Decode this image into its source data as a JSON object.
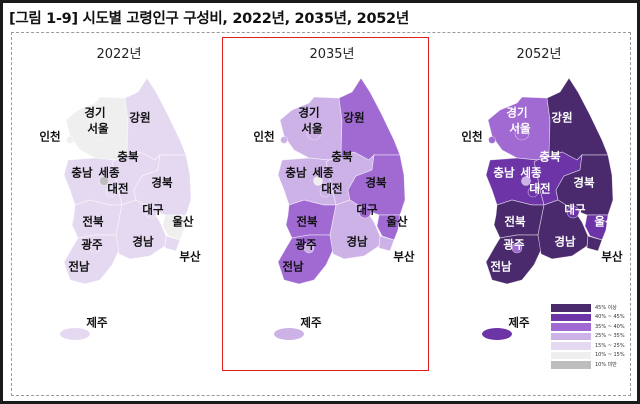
{
  "title": "[그림 1-9] 시도별 고령인구 구성비, 2022년, 2035년, 2052년",
  "legend": [
    {
      "label": "45% 이상",
      "color": "#4a2a6c"
    },
    {
      "label": "40% ~ 45%",
      "color": "#6c34a6"
    },
    {
      "label": "35% ~ 40%",
      "color": "#a06ad2"
    },
    {
      "label": "25% ~ 35%",
      "color": "#cdb2e8"
    },
    {
      "label": "15% ~ 25%",
      "color": "#e4d9f1"
    },
    {
      "label": "10% ~ 15%",
      "color": "#efefef"
    },
    {
      "label": "10% 미만",
      "color": "#bdbdbd"
    }
  ],
  "highlight_color": "#e0201c",
  "maps": [
    {
      "year": "2022년",
      "highlighted": false,
      "levels": {
        "경기": 5,
        "서울": 5,
        "인천": 5,
        "강원": 4,
        "충북": 4,
        "충남": 4,
        "세종": 6,
        "대전": 4,
        "경북": 4,
        "대구": 4,
        "울산": 5,
        "전북": 4,
        "광주": 4,
        "전남": 4,
        "경남": 4,
        "부산": 4,
        "제주": 4
      },
      "label_colors": {}
    },
    {
      "year": "2035년",
      "highlighted": true,
      "levels": {
        "경기": 3,
        "서울": 3,
        "인천": 3,
        "강원": 2,
        "충북": 3,
        "충남": 3,
        "세종": 5,
        "대전": 3,
        "경북": 2,
        "대구": 2,
        "울산": 2,
        "전북": 2,
        "광주": 3,
        "전남": 2,
        "경남": 3,
        "부산": 3,
        "제주": 3
      },
      "label_colors": {}
    },
    {
      "year": "2052년",
      "highlighted": false,
      "levels": {
        "경기": 2,
        "서울": 2,
        "인천": 2,
        "강원": 0,
        "충북": 1,
        "충남": 1,
        "세종": 3,
        "대전": 1,
        "경북": 0,
        "대구": 1,
        "울산": 1,
        "전북": 0,
        "광주": 2,
        "전남": 0,
        "경남": 0,
        "부산": 0,
        "제주": 1
      },
      "label_colors": {
        "경기": "#ffffff",
        "서울": "#ffffff",
        "강원": "#ffffff",
        "충북": "#ffffff",
        "충남": "#ffffff",
        "세종": "#ffffff",
        "대전": "#ffffff",
        "경북": "#ffffff",
        "대구": "#ffffff",
        "울산": "#ffffff",
        "전북": "#ffffff",
        "광주": "#ffffff",
        "전남": "#ffffff",
        "경남": "#ffffff"
      }
    }
  ],
  "region_labels": [
    "경기",
    "서울",
    "인천",
    "강원",
    "충북",
    "충남",
    "세종",
    "대전",
    "경북",
    "대구",
    "울산",
    "전북",
    "경남",
    "부산",
    "광주",
    "전남",
    "제주"
  ]
}
